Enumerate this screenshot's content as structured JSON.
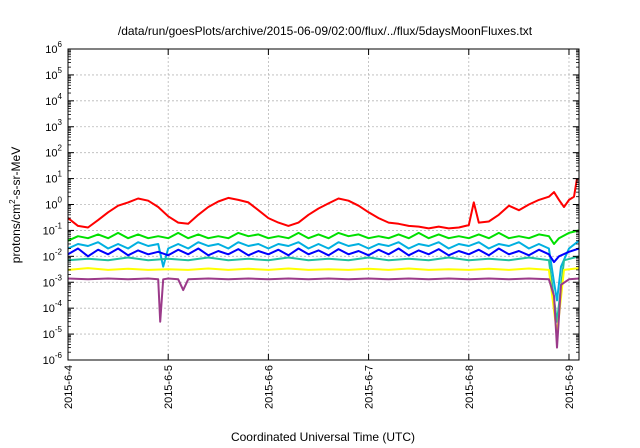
{
  "chart_data": {
    "type": "line",
    "title": "/data/run/goesPlots/archive/2015-06-09/02:00/flux/../flux/5daysMoonFluxes.txt",
    "xlabel": "Coordinated Universal Time (UTC)",
    "ylabel_main": "protons/cm",
    "ylabel_sup": "2",
    "ylabel_tail": "-s-sr-MeV",
    "y_scale": "log",
    "ylim_exp": [
      -6,
      6
    ],
    "y_tick_exponents": [
      -6,
      -5,
      -4,
      -3,
      -2,
      -1,
      0,
      1,
      2,
      3,
      4,
      5,
      6
    ],
    "y_tick_base": "10",
    "x_range_days": [
      0,
      5.1
    ],
    "x_ticks": [
      {
        "day": 0,
        "label": "2015-6-4"
      },
      {
        "day": 1,
        "label": "2015-6-5"
      },
      {
        "day": 2,
        "label": "2015-6-6"
      },
      {
        "day": 3,
        "label": "2015-6-7"
      },
      {
        "day": 4,
        "label": "2015-6-8"
      },
      {
        "day": 5,
        "label": "2015-6-9"
      }
    ],
    "grid": true,
    "legend": "none",
    "series": [
      {
        "color": "#ff0000",
        "points": [
          [
            0.0,
            0.3
          ],
          [
            0.1,
            0.15
          ],
          [
            0.2,
            0.13
          ],
          [
            0.3,
            0.25
          ],
          [
            0.4,
            0.5
          ],
          [
            0.5,
            0.9
          ],
          [
            0.6,
            1.2
          ],
          [
            0.7,
            1.7
          ],
          [
            0.8,
            1.4
          ],
          [
            0.9,
            0.8
          ],
          [
            1.0,
            0.35
          ],
          [
            1.1,
            0.2
          ],
          [
            1.2,
            0.18
          ],
          [
            1.3,
            0.4
          ],
          [
            1.4,
            0.8
          ],
          [
            1.5,
            1.3
          ],
          [
            1.6,
            1.8
          ],
          [
            1.7,
            1.5
          ],
          [
            1.8,
            1.2
          ],
          [
            1.9,
            0.6
          ],
          [
            2.0,
            0.3
          ],
          [
            2.1,
            0.2
          ],
          [
            2.2,
            0.15
          ],
          [
            2.3,
            0.2
          ],
          [
            2.4,
            0.4
          ],
          [
            2.5,
            0.7
          ],
          [
            2.6,
            1.1
          ],
          [
            2.7,
            1.7
          ],
          [
            2.8,
            1.4
          ],
          [
            2.9,
            0.9
          ],
          [
            3.0,
            0.5
          ],
          [
            3.1,
            0.3
          ],
          [
            3.2,
            0.2
          ],
          [
            3.3,
            0.18
          ],
          [
            3.4,
            0.15
          ],
          [
            3.5,
            0.14
          ],
          [
            3.6,
            0.12
          ],
          [
            3.7,
            0.14
          ],
          [
            3.8,
            0.12
          ],
          [
            3.9,
            0.13
          ],
          [
            4.0,
            0.16
          ],
          [
            4.05,
            1.2
          ],
          [
            4.1,
            0.2
          ],
          [
            4.2,
            0.22
          ],
          [
            4.3,
            0.4
          ],
          [
            4.4,
            0.9
          ],
          [
            4.5,
            0.6
          ],
          [
            4.6,
            1.0
          ],
          [
            4.7,
            1.5
          ],
          [
            4.8,
            2.0
          ],
          [
            4.85,
            3.0
          ],
          [
            4.9,
            1.5
          ],
          [
            4.95,
            0.8
          ],
          [
            5.0,
            1.5
          ],
          [
            5.05,
            2.0
          ],
          [
            5.08,
            10.0
          ]
        ]
      },
      {
        "color": "#00e000",
        "points": [
          [
            0.0,
            0.04
          ],
          [
            0.1,
            0.06
          ],
          [
            0.2,
            0.05
          ],
          [
            0.3,
            0.07
          ],
          [
            0.4,
            0.05
          ],
          [
            0.5,
            0.08
          ],
          [
            0.6,
            0.05
          ],
          [
            0.7,
            0.07
          ],
          [
            0.8,
            0.05
          ],
          [
            0.9,
            0.06
          ],
          [
            1.0,
            0.05
          ],
          [
            1.1,
            0.08
          ],
          [
            1.2,
            0.05
          ],
          [
            1.3,
            0.07
          ],
          [
            1.4,
            0.05
          ],
          [
            1.5,
            0.06
          ],
          [
            1.6,
            0.05
          ],
          [
            1.7,
            0.08
          ],
          [
            1.8,
            0.06
          ],
          [
            1.9,
            0.07
          ],
          [
            2.0,
            0.05
          ],
          [
            2.1,
            0.06
          ],
          [
            2.2,
            0.05
          ],
          [
            2.3,
            0.08
          ],
          [
            2.4,
            0.05
          ],
          [
            2.5,
            0.07
          ],
          [
            2.6,
            0.05
          ],
          [
            2.7,
            0.08
          ],
          [
            2.8,
            0.06
          ],
          [
            2.9,
            0.07
          ],
          [
            3.0,
            0.05
          ],
          [
            3.1,
            0.06
          ],
          [
            3.2,
            0.05
          ],
          [
            3.3,
            0.07
          ],
          [
            3.4,
            0.05
          ],
          [
            3.5,
            0.08
          ],
          [
            3.6,
            0.05
          ],
          [
            3.7,
            0.07
          ],
          [
            3.8,
            0.05
          ],
          [
            3.9,
            0.06
          ],
          [
            4.0,
            0.05
          ],
          [
            4.1,
            0.07
          ],
          [
            4.2,
            0.05
          ],
          [
            4.3,
            0.08
          ],
          [
            4.4,
            0.05
          ],
          [
            4.5,
            0.06
          ],
          [
            4.6,
            0.05
          ],
          [
            4.7,
            0.07
          ],
          [
            4.8,
            0.06
          ],
          [
            4.85,
            0.03
          ],
          [
            4.9,
            0.05
          ],
          [
            5.0,
            0.08
          ],
          [
            5.1,
            0.1
          ]
        ]
      },
      {
        "color": "#00b0e0",
        "points": [
          [
            0.0,
            0.02
          ],
          [
            0.1,
            0.03
          ],
          [
            0.2,
            0.025
          ],
          [
            0.3,
            0.035
          ],
          [
            0.4,
            0.02
          ],
          [
            0.5,
            0.03
          ],
          [
            0.6,
            0.02
          ],
          [
            0.7,
            0.035
          ],
          [
            0.8,
            0.025
          ],
          [
            0.9,
            0.03
          ],
          [
            0.95,
            0.004
          ],
          [
            1.0,
            0.02
          ],
          [
            1.1,
            0.03
          ],
          [
            1.2,
            0.02
          ],
          [
            1.3,
            0.035
          ],
          [
            1.4,
            0.025
          ],
          [
            1.5,
            0.03
          ],
          [
            1.6,
            0.02
          ],
          [
            1.7,
            0.035
          ],
          [
            1.8,
            0.025
          ],
          [
            1.9,
            0.03
          ],
          [
            2.0,
            0.02
          ],
          [
            2.1,
            0.03
          ],
          [
            2.2,
            0.025
          ],
          [
            2.3,
            0.035
          ],
          [
            2.4,
            0.02
          ],
          [
            2.5,
            0.03
          ],
          [
            2.6,
            0.02
          ],
          [
            2.7,
            0.035
          ],
          [
            2.8,
            0.025
          ],
          [
            2.9,
            0.03
          ],
          [
            3.0,
            0.02
          ],
          [
            3.1,
            0.03
          ],
          [
            3.2,
            0.025
          ],
          [
            3.3,
            0.035
          ],
          [
            3.4,
            0.02
          ],
          [
            3.5,
            0.03
          ],
          [
            3.6,
            0.025
          ],
          [
            3.7,
            0.035
          ],
          [
            3.8,
            0.02
          ],
          [
            3.9,
            0.03
          ],
          [
            4.0,
            0.025
          ],
          [
            4.1,
            0.035
          ],
          [
            4.2,
            0.02
          ],
          [
            4.3,
            0.03
          ],
          [
            4.4,
            0.025
          ],
          [
            4.5,
            0.035
          ],
          [
            4.6,
            0.02
          ],
          [
            4.7,
            0.03
          ],
          [
            4.8,
            0.02
          ],
          [
            4.85,
            0.001
          ],
          [
            4.88,
            0.0002
          ],
          [
            4.92,
            0.004
          ],
          [
            5.0,
            0.02
          ],
          [
            5.1,
            0.04
          ]
        ]
      },
      {
        "color": "#0000ff",
        "points": [
          [
            0.0,
            0.012
          ],
          [
            0.1,
            0.02
          ],
          [
            0.2,
            0.01
          ],
          [
            0.3,
            0.018
          ],
          [
            0.4,
            0.012
          ],
          [
            0.5,
            0.02
          ],
          [
            0.6,
            0.011
          ],
          [
            0.7,
            0.017
          ],
          [
            0.8,
            0.012
          ],
          [
            0.9,
            0.015
          ],
          [
            1.0,
            0.011
          ],
          [
            1.1,
            0.018
          ],
          [
            1.2,
            0.012
          ],
          [
            1.3,
            0.02
          ],
          [
            1.4,
            0.011
          ],
          [
            1.5,
            0.016
          ],
          [
            1.6,
            0.012
          ],
          [
            1.7,
            0.019
          ],
          [
            1.8,
            0.011
          ],
          [
            1.9,
            0.016
          ],
          [
            2.0,
            0.012
          ],
          [
            2.1,
            0.018
          ],
          [
            2.2,
            0.011
          ],
          [
            2.3,
            0.02
          ],
          [
            2.4,
            0.012
          ],
          [
            2.5,
            0.017
          ],
          [
            2.6,
            0.011
          ],
          [
            2.7,
            0.019
          ],
          [
            2.8,
            0.012
          ],
          [
            2.9,
            0.016
          ],
          [
            3.0,
            0.011
          ],
          [
            3.1,
            0.018
          ],
          [
            3.2,
            0.012
          ],
          [
            3.3,
            0.02
          ],
          [
            3.4,
            0.011
          ],
          [
            3.5,
            0.017
          ],
          [
            3.6,
            0.012
          ],
          [
            3.7,
            0.019
          ],
          [
            3.8,
            0.011
          ],
          [
            3.9,
            0.016
          ],
          [
            4.0,
            0.012
          ],
          [
            4.1,
            0.018
          ],
          [
            4.2,
            0.011
          ],
          [
            4.3,
            0.02
          ],
          [
            4.4,
            0.012
          ],
          [
            4.5,
            0.016
          ],
          [
            4.6,
            0.011
          ],
          [
            4.7,
            0.018
          ],
          [
            4.8,
            0.012
          ],
          [
            4.85,
            0.006
          ],
          [
            4.9,
            0.01
          ],
          [
            5.0,
            0.015
          ],
          [
            5.1,
            0.02
          ]
        ]
      },
      {
        "color": "#20c0a0",
        "points": [
          [
            0.0,
            0.007
          ],
          [
            0.2,
            0.008
          ],
          [
            0.4,
            0.007
          ],
          [
            0.6,
            0.009
          ],
          [
            0.8,
            0.007
          ],
          [
            1.0,
            0.008
          ],
          [
            1.2,
            0.007
          ],
          [
            1.4,
            0.009
          ],
          [
            1.6,
            0.007
          ],
          [
            1.8,
            0.008
          ],
          [
            2.0,
            0.007
          ],
          [
            2.2,
            0.009
          ],
          [
            2.4,
            0.007
          ],
          [
            2.6,
            0.008
          ],
          [
            2.8,
            0.007
          ],
          [
            3.0,
            0.009
          ],
          [
            3.2,
            0.007
          ],
          [
            3.4,
            0.008
          ],
          [
            3.6,
            0.007
          ],
          [
            3.8,
            0.009
          ],
          [
            4.0,
            0.007
          ],
          [
            4.2,
            0.008
          ],
          [
            4.4,
            0.007
          ],
          [
            4.6,
            0.009
          ],
          [
            4.8,
            0.007
          ],
          [
            4.88,
            3e-05
          ],
          [
            4.95,
            0.007
          ],
          [
            5.1,
            0.01
          ]
        ]
      },
      {
        "color": "#ffff00",
        "points": [
          [
            0.0,
            0.003
          ],
          [
            0.2,
            0.0035
          ],
          [
            0.4,
            0.003
          ],
          [
            0.6,
            0.0033
          ],
          [
            0.8,
            0.003
          ],
          [
            1.0,
            0.0032
          ],
          [
            1.2,
            0.003
          ],
          [
            1.4,
            0.0034
          ],
          [
            1.6,
            0.003
          ],
          [
            1.8,
            0.0033
          ],
          [
            2.0,
            0.003
          ],
          [
            2.2,
            0.0034
          ],
          [
            2.4,
            0.003
          ],
          [
            2.6,
            0.0032
          ],
          [
            2.8,
            0.003
          ],
          [
            3.0,
            0.0033
          ],
          [
            3.2,
            0.003
          ],
          [
            3.4,
            0.0034
          ],
          [
            3.6,
            0.003
          ],
          [
            3.8,
            0.0032
          ],
          [
            4.0,
            0.003
          ],
          [
            4.2,
            0.0033
          ],
          [
            4.4,
            0.003
          ],
          [
            4.6,
            0.0034
          ],
          [
            4.8,
            0.003
          ],
          [
            4.88,
            1e-05
          ],
          [
            4.95,
            0.003
          ],
          [
            5.1,
            0.0035
          ]
        ]
      },
      {
        "color": "#9b3a8a",
        "points": [
          [
            0.0,
            0.0014
          ],
          [
            0.2,
            0.0013
          ],
          [
            0.4,
            0.0014
          ],
          [
            0.6,
            0.0013
          ],
          [
            0.8,
            0.0014
          ],
          [
            0.9,
            0.0013
          ],
          [
            0.92,
            3e-05
          ],
          [
            0.95,
            0.0013
          ],
          [
            1.0,
            0.0014
          ],
          [
            1.1,
            0.0013
          ],
          [
            1.15,
            0.0005
          ],
          [
            1.2,
            0.0013
          ],
          [
            1.4,
            0.0014
          ],
          [
            1.6,
            0.0013
          ],
          [
            1.8,
            0.0014
          ],
          [
            2.0,
            0.0013
          ],
          [
            2.2,
            0.0014
          ],
          [
            2.4,
            0.0013
          ],
          [
            2.6,
            0.0014
          ],
          [
            2.8,
            0.0013
          ],
          [
            3.0,
            0.0014
          ],
          [
            3.2,
            0.0013
          ],
          [
            3.4,
            0.0014
          ],
          [
            3.6,
            0.0013
          ],
          [
            3.8,
            0.0014
          ],
          [
            4.0,
            0.0013
          ],
          [
            4.2,
            0.0014
          ],
          [
            4.4,
            0.0013
          ],
          [
            4.6,
            0.0014
          ],
          [
            4.8,
            0.0013
          ],
          [
            4.85,
            0.0003
          ],
          [
            4.88,
            3e-06
          ],
          [
            4.92,
            0.0008
          ],
          [
            5.0,
            0.0013
          ],
          [
            5.1,
            0.0014
          ]
        ]
      }
    ]
  }
}
